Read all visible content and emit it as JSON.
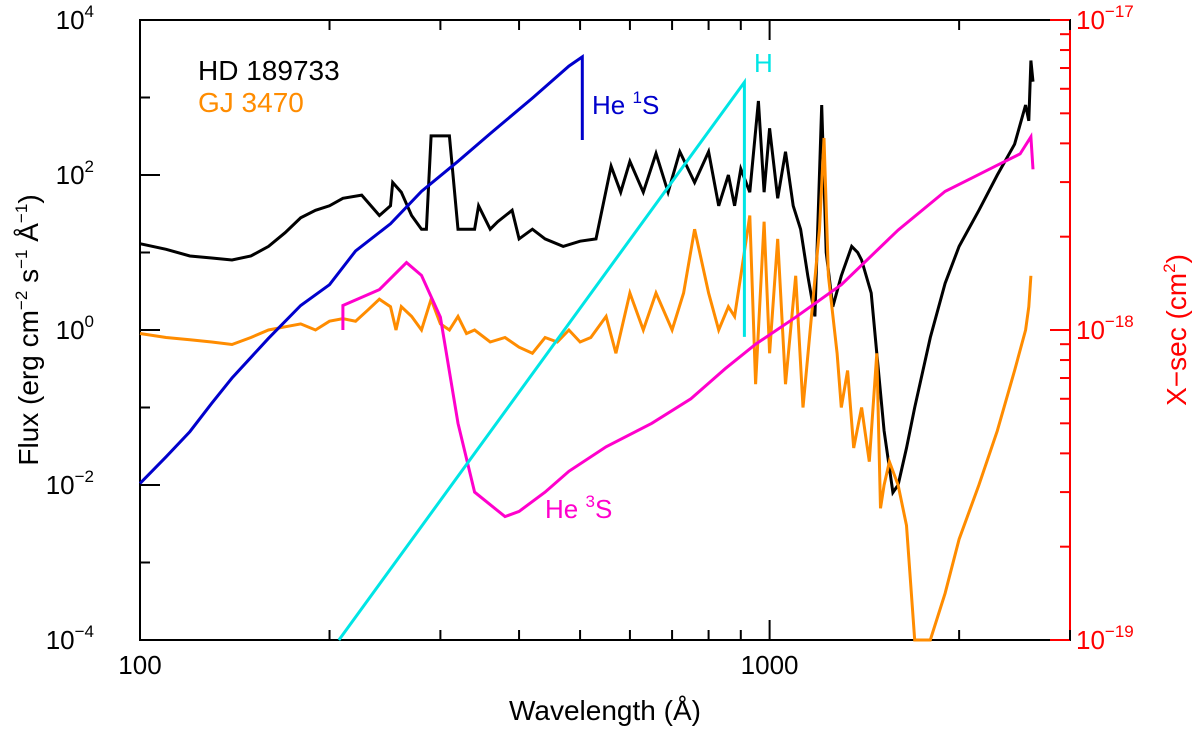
{
  "chart_data": {
    "type": "line",
    "x_axis": {
      "label_main": "Wavelength (",
      "label_unit": "Å",
      "label_close": ")",
      "scale": "log",
      "range": [
        100,
        3000
      ],
      "ticks": [
        {
          "value": 100,
          "label": "100"
        },
        {
          "value": 1000,
          "label": "1000"
        }
      ]
    },
    "y_left": {
      "label_parts": [
        "Flux (erg cm",
        "−2",
        " s",
        "−1",
        " Å",
        "−1",
        ")"
      ],
      "scale": "log",
      "range": [
        0.0001,
        10000
      ],
      "ticks": [
        {
          "value": 0.0001,
          "base": "10",
          "exp": "−4"
        },
        {
          "value": 0.01,
          "base": "10",
          "exp": "−2"
        },
        {
          "value": 1,
          "base": "10",
          "exp": "0"
        },
        {
          "value": 100,
          "base": "10",
          "exp": "2"
        },
        {
          "value": 10000,
          "base": "10",
          "exp": "4"
        }
      ]
    },
    "y_right": {
      "label_main": "X−sec (cm",
      "label_exp": "2",
      "label_close": ")",
      "scale": "log",
      "range": [
        1e-19,
        1e-17
      ],
      "ticks": [
        {
          "value": 1e-19,
          "base": "10",
          "exp": "−19"
        },
        {
          "value": 1e-18,
          "base": "10",
          "exp": "−18"
        },
        {
          "value": 1e-17,
          "base": "10",
          "exp": "−17"
        }
      ]
    },
    "legend": [
      {
        "label": "HD 189733",
        "color": "#000000"
      },
      {
        "label": "GJ 3470",
        "color": "#ff8c00"
      }
    ],
    "annotations": [
      {
        "text": "He ",
        "sup": "1",
        "tail": "S",
        "color": "#0000cc",
        "at": [
          520,
          1500
        ]
      },
      {
        "text": "H",
        "sup": "",
        "tail": "",
        "color": "#00e5e5",
        "at": [
          920,
          6000
        ]
      },
      {
        "text": "He ",
        "sup": "3",
        "tail": "S",
        "color": "#ff00cc",
        "at": [
          435,
          0.0035
        ]
      }
    ],
    "colors": {
      "axis_left": "#000000",
      "axis_right": "#ff0000"
    },
    "series": [
      {
        "name": "HD 189733",
        "axis": "left",
        "color": "#000000",
        "points": [
          [
            100,
            13
          ],
          [
            110,
            11
          ],
          [
            120,
            9
          ],
          [
            130,
            8.5
          ],
          [
            140,
            8
          ],
          [
            150,
            9
          ],
          [
            160,
            12
          ],
          [
            170,
            18
          ],
          [
            180,
            28
          ],
          [
            190,
            35
          ],
          [
            200,
            40
          ],
          [
            210,
            50
          ],
          [
            225,
            55
          ],
          [
            240,
            30
          ],
          [
            250,
            40
          ],
          [
            252,
            80
          ],
          [
            260,
            60
          ],
          [
            270,
            30
          ],
          [
            280,
            20
          ],
          [
            285,
            20
          ],
          [
            290,
            320
          ],
          [
            300,
            320
          ],
          [
            310,
            320
          ],
          [
            320,
            20
          ],
          [
            340,
            20
          ],
          [
            345,
            40
          ],
          [
            360,
            20
          ],
          [
            370,
            25
          ],
          [
            390,
            35
          ],
          [
            400,
            15
          ],
          [
            420,
            20
          ],
          [
            440,
            15
          ],
          [
            470,
            12
          ],
          [
            500,
            14
          ],
          [
            530,
            15
          ],
          [
            560,
            130
          ],
          [
            580,
            60
          ],
          [
            600,
            150
          ],
          [
            630,
            60
          ],
          [
            660,
            190
          ],
          [
            690,
            60
          ],
          [
            720,
            200
          ],
          [
            760,
            80
          ],
          [
            800,
            200
          ],
          [
            830,
            40
          ],
          [
            860,
            100
          ],
          [
            880,
            40
          ],
          [
            900,
            120
          ],
          [
            930,
            60
          ],
          [
            960,
            900
          ],
          [
            980,
            60
          ],
          [
            1000,
            400
          ],
          [
            1030,
            50
          ],
          [
            1060,
            200
          ],
          [
            1090,
            40
          ],
          [
            1120,
            20
          ],
          [
            1150,
            5
          ],
          [
            1180,
            1.5
          ],
          [
            1210,
            800
          ],
          [
            1230,
            10
          ],
          [
            1260,
            2
          ],
          [
            1300,
            5
          ],
          [
            1350,
            12
          ],
          [
            1380,
            10
          ],
          [
            1400,
            8
          ],
          [
            1450,
            3
          ],
          [
            1480,
            0.5
          ],
          [
            1520,
            0.05
          ],
          [
            1570,
            0.008
          ],
          [
            1600,
            0.01
          ],
          [
            1650,
            0.03
          ],
          [
            1700,
            0.1
          ],
          [
            1800,
            0.8
          ],
          [
            1900,
            4
          ],
          [
            2000,
            12
          ],
          [
            2150,
            35
          ],
          [
            2300,
            100
          ],
          [
            2450,
            250
          ],
          [
            2550,
            800
          ],
          [
            2580,
            500
          ],
          [
            2600,
            3000
          ],
          [
            2620,
            1600
          ]
        ]
      },
      {
        "name": "GJ 3470",
        "axis": "left",
        "color": "#ff8c00",
        "points": [
          [
            100,
            0.9
          ],
          [
            110,
            0.8
          ],
          [
            120,
            0.75
          ],
          [
            130,
            0.7
          ],
          [
            140,
            0.65
          ],
          [
            150,
            0.8
          ],
          [
            160,
            1
          ],
          [
            170,
            1.1
          ],
          [
            180,
            1.2
          ],
          [
            190,
            1
          ],
          [
            200,
            1.3
          ],
          [
            210,
            1.4
          ],
          [
            220,
            1.3
          ],
          [
            230,
            1.8
          ],
          [
            240,
            2.5
          ],
          [
            250,
            2
          ],
          [
            255,
            1
          ],
          [
            260,
            2
          ],
          [
            270,
            1.5
          ],
          [
            280,
            1
          ],
          [
            290,
            2.5
          ],
          [
            300,
            1.2
          ],
          [
            310,
            1
          ],
          [
            320,
            1.5
          ],
          [
            330,
            0.9
          ],
          [
            340,
            1
          ],
          [
            360,
            0.7
          ],
          [
            380,
            0.8
          ],
          [
            400,
            0.6
          ],
          [
            420,
            0.5
          ],
          [
            440,
            0.8
          ],
          [
            460,
            0.7
          ],
          [
            480,
            1
          ],
          [
            500,
            0.7
          ],
          [
            520,
            0.8
          ],
          [
            550,
            1.5
          ],
          [
            570,
            0.5
          ],
          [
            600,
            3
          ],
          [
            630,
            1
          ],
          [
            660,
            3
          ],
          [
            700,
            1
          ],
          [
            730,
            3
          ],
          [
            760,
            20
          ],
          [
            800,
            3
          ],
          [
            830,
            1
          ],
          [
            860,
            2
          ],
          [
            880,
            1.5
          ],
          [
            900,
            5
          ],
          [
            930,
            30
          ],
          [
            950,
            0.2
          ],
          [
            980,
            25
          ],
          [
            1000,
            0.5
          ],
          [
            1030,
            15
          ],
          [
            1060,
            0.2
          ],
          [
            1100,
            5
          ],
          [
            1130,
            0.1
          ],
          [
            1160,
            1
          ],
          [
            1200,
            20
          ],
          [
            1220,
            300
          ],
          [
            1240,
            5
          ],
          [
            1280,
            0.5
          ],
          [
            1300,
            0.1
          ],
          [
            1330,
            0.3
          ],
          [
            1360,
            0.03
          ],
          [
            1400,
            0.1
          ],
          [
            1440,
            0.02
          ],
          [
            1480,
            0.5
          ],
          [
            1500,
            0.005
          ],
          [
            1520,
            0.01
          ],
          [
            1550,
            0.02
          ],
          [
            1600,
            0.01
          ],
          [
            1650,
            0.003
          ],
          [
            1700,
            0.0001
          ],
          [
            1750,
            4e-05
          ],
          [
            1800,
            8e-05
          ],
          [
            1900,
            0.0004
          ],
          [
            2000,
            0.002
          ],
          [
            2150,
            0.01
          ],
          [
            2300,
            0.05
          ],
          [
            2450,
            0.3
          ],
          [
            2550,
            1
          ],
          [
            2580,
            2
          ],
          [
            2600,
            5
          ]
        ]
      },
      {
        "name": "He 1S",
        "axis": "right",
        "color": "#0000cc",
        "points": [
          [
            100,
            3.2e-19
          ],
          [
            110,
            3.9e-19
          ],
          [
            120,
            4.7e-19
          ],
          [
            130,
            5.8e-19
          ],
          [
            140,
            7e-19
          ],
          [
            160,
            9.4e-19
          ],
          [
            180,
            1.2e-18
          ],
          [
            200,
            1.4e-18
          ],
          [
            220,
            1.8e-18
          ],
          [
            250,
            2.2e-18
          ],
          [
            280,
            2.8e-18
          ],
          [
            320,
            3.5e-18
          ],
          [
            360,
            4.3e-18
          ],
          [
            420,
            5.6e-18
          ],
          [
            480,
            7.1e-18
          ],
          [
            504,
            7.6e-18
          ],
          [
            504,
            4.1e-18
          ]
        ]
      },
      {
        "name": "He 3S",
        "axis": "right",
        "color": "#ff00cc",
        "points": [
          [
            210,
            1e-18
          ],
          [
            210,
            1.2e-18
          ],
          [
            240,
            1.35e-18
          ],
          [
            265,
            1.65e-18
          ],
          [
            280,
            1.5e-18
          ],
          [
            300,
            1.1e-18
          ],
          [
            320,
            5e-19
          ],
          [
            340,
            3e-19
          ],
          [
            380,
            2.5e-19
          ],
          [
            400,
            2.6e-19
          ],
          [
            440,
            3e-19
          ],
          [
            480,
            3.5e-19
          ],
          [
            550,
            4.2e-19
          ],
          [
            650,
            5e-19
          ],
          [
            750,
            6e-19
          ],
          [
            850,
            7.5e-19
          ],
          [
            950,
            9e-19
          ],
          [
            1100,
            1.1e-18
          ],
          [
            1300,
            1.4e-18
          ],
          [
            1600,
            2.1e-18
          ],
          [
            1900,
            2.8e-18
          ],
          [
            2100,
            3.1e-18
          ],
          [
            2300,
            3.4e-18
          ],
          [
            2500,
            3.7e-18
          ],
          [
            2600,
            4.2e-18
          ],
          [
            2620,
            3.3e-18
          ]
        ]
      },
      {
        "name": "H",
        "axis": "right",
        "color": "#00e5e5",
        "points": [
          [
            207,
            1e-19
          ],
          [
            912,
            6.3e-18
          ],
          [
            912,
            9.5e-19
          ]
        ]
      }
    ]
  }
}
